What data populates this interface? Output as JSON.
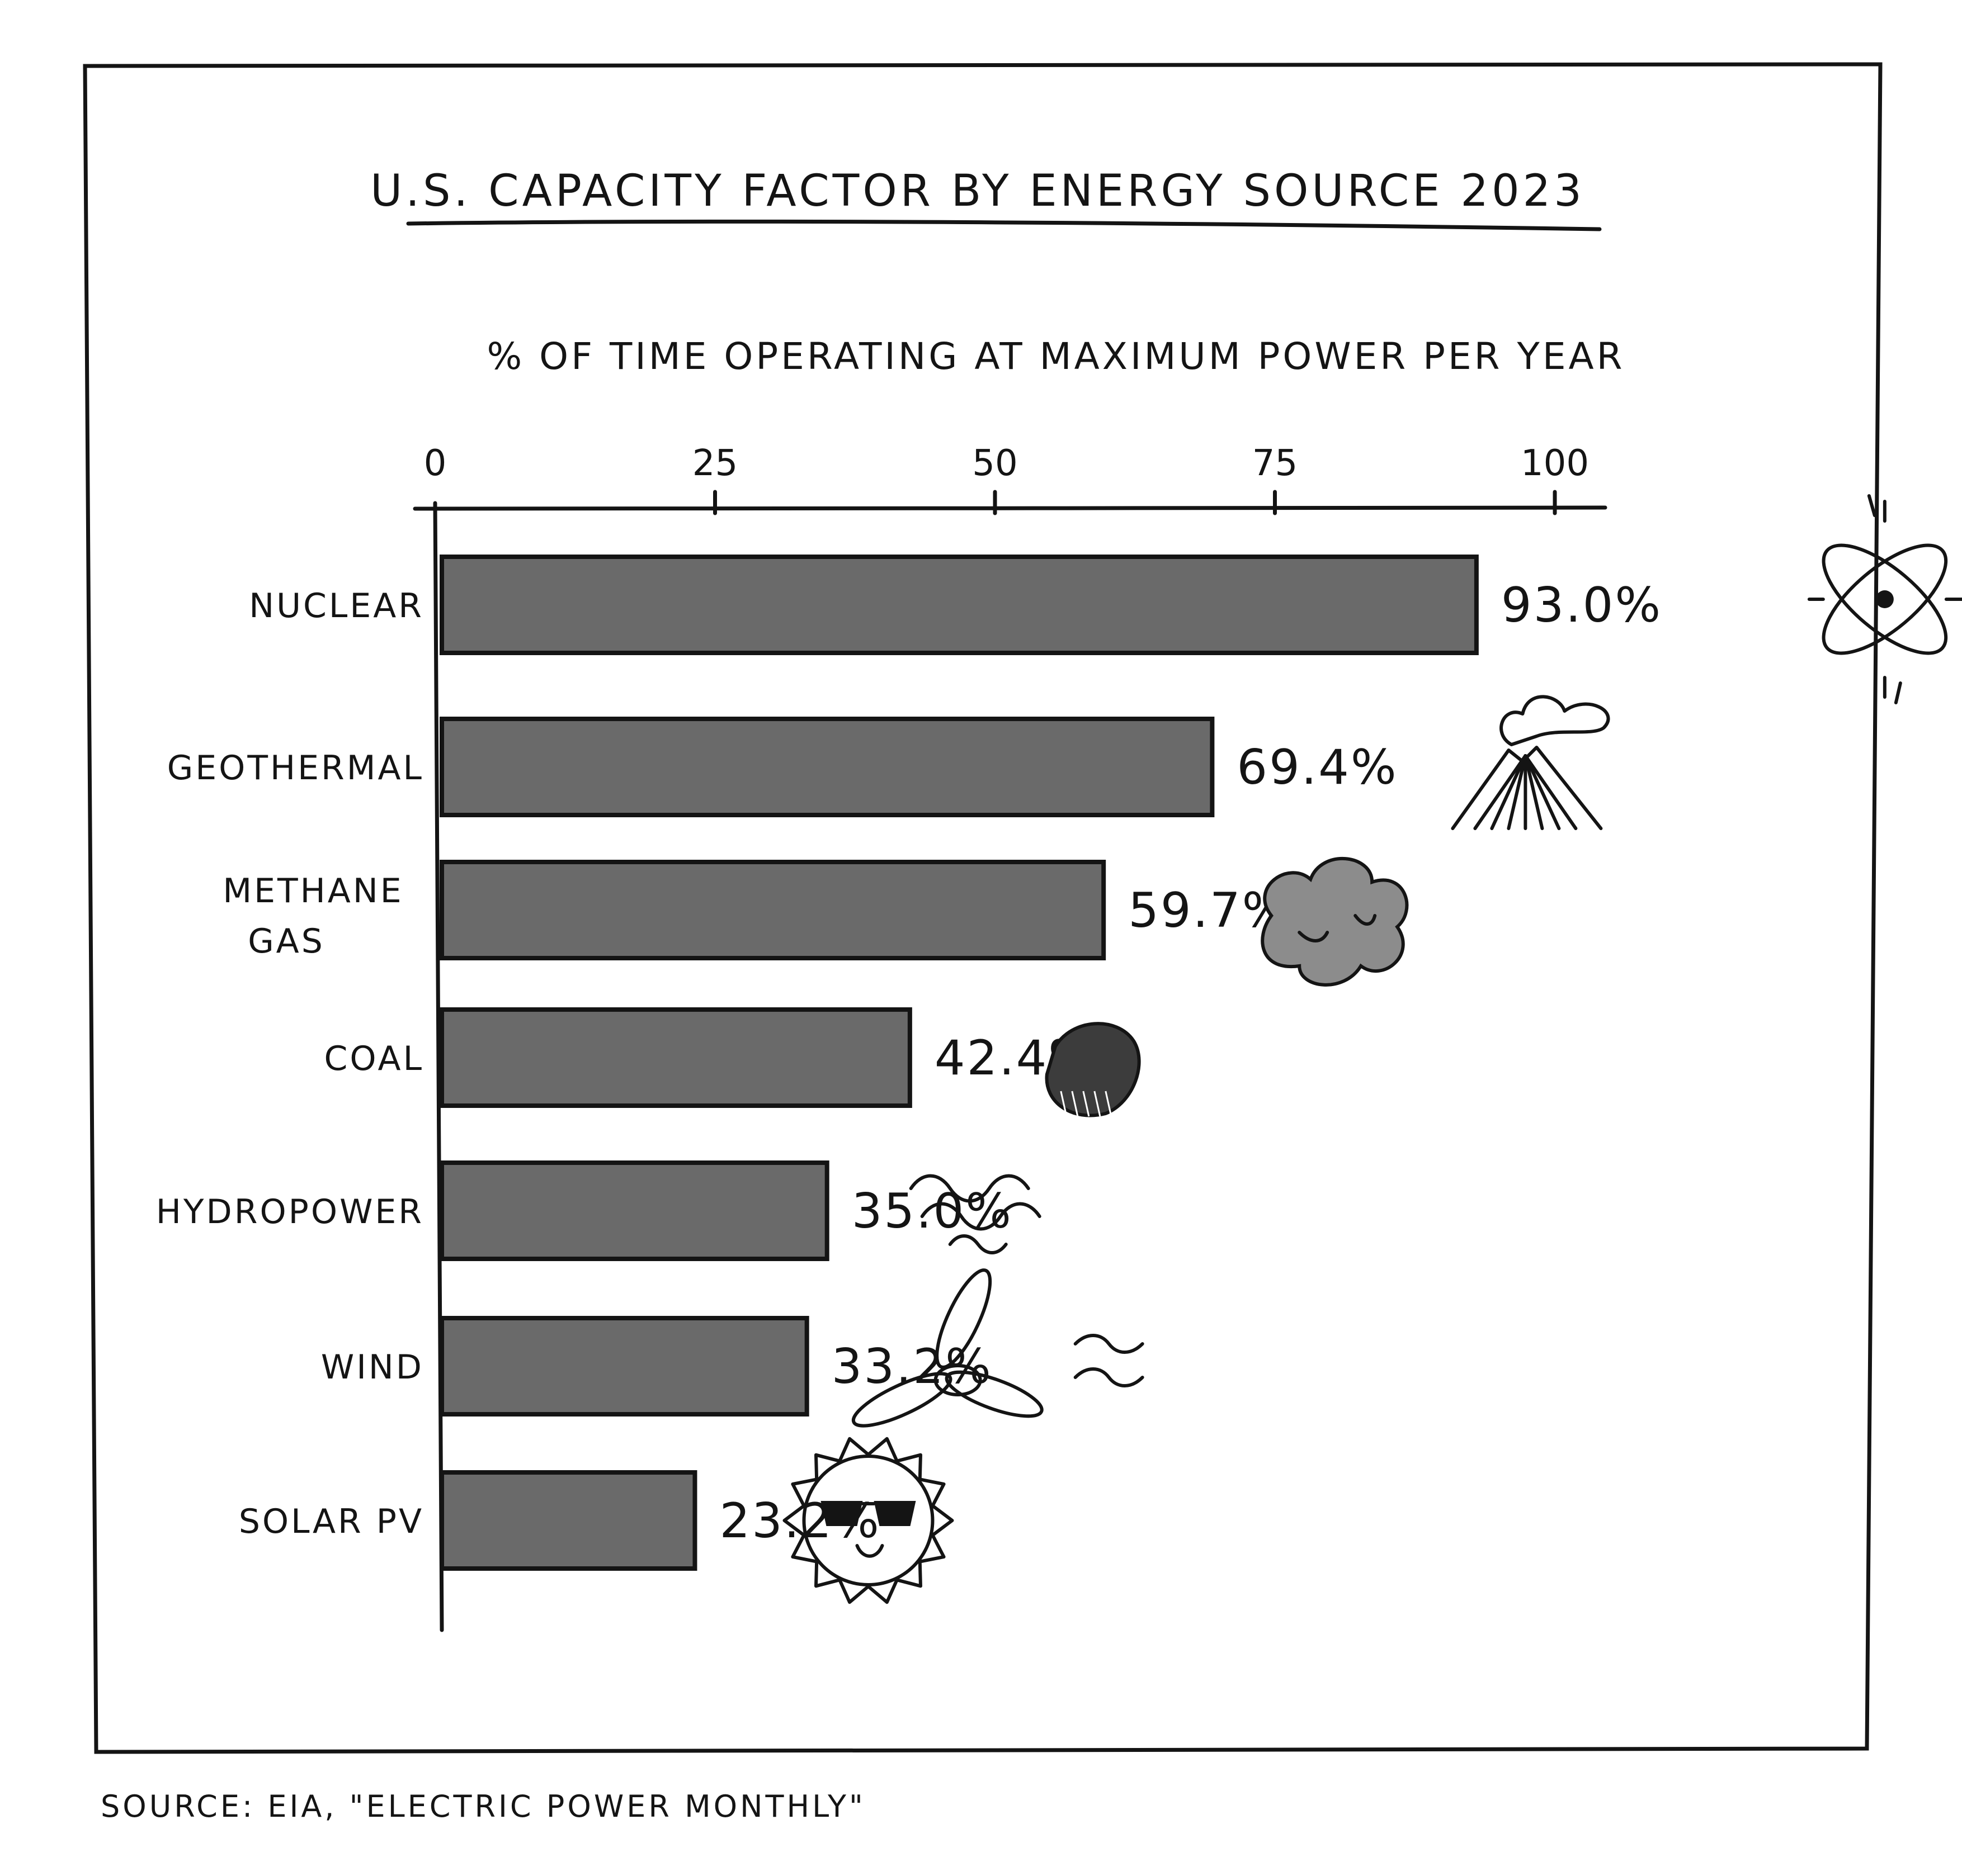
{
  "chart_data": {
    "type": "bar",
    "orientation": "horizontal",
    "title": "U.S. CAPACITY FACTOR BY ENERGY SOURCE 2023",
    "subtitle": "% OF TIME OPERATING AT MAXIMUM POWER PER YEAR",
    "categories": [
      "NUCLEAR",
      "GEOTHERMAL",
      "METHANE GAS",
      "COAL",
      "HYDROPOWER",
      "WIND",
      "SOLAR PV"
    ],
    "values": [
      93.0,
      69.4,
      59.7,
      42.4,
      35.0,
      33.2,
      23.2
    ],
    "value_labels": [
      "93.0%",
      "69.4%",
      "59.7%",
      "42.4%",
      "35.0%",
      "33.2%",
      "23.2%"
    ],
    "icons": [
      "atom-icon",
      "volcano-icon",
      "smoke-cloud-icon",
      "coal-lump-icon",
      "water-waves-icon",
      "wind-turbine-icon",
      "sun-with-sunglasses-icon"
    ],
    "xlim": [
      0,
      100
    ],
    "xticks": [
      "0",
      "25",
      "50",
      "75",
      "100"
    ],
    "axis_position": "top",
    "grid": false,
    "bar_color": "#6a6a6a",
    "source": "SOURCE: EIA, \"ELECTRIC POWER MONTHLY\""
  }
}
